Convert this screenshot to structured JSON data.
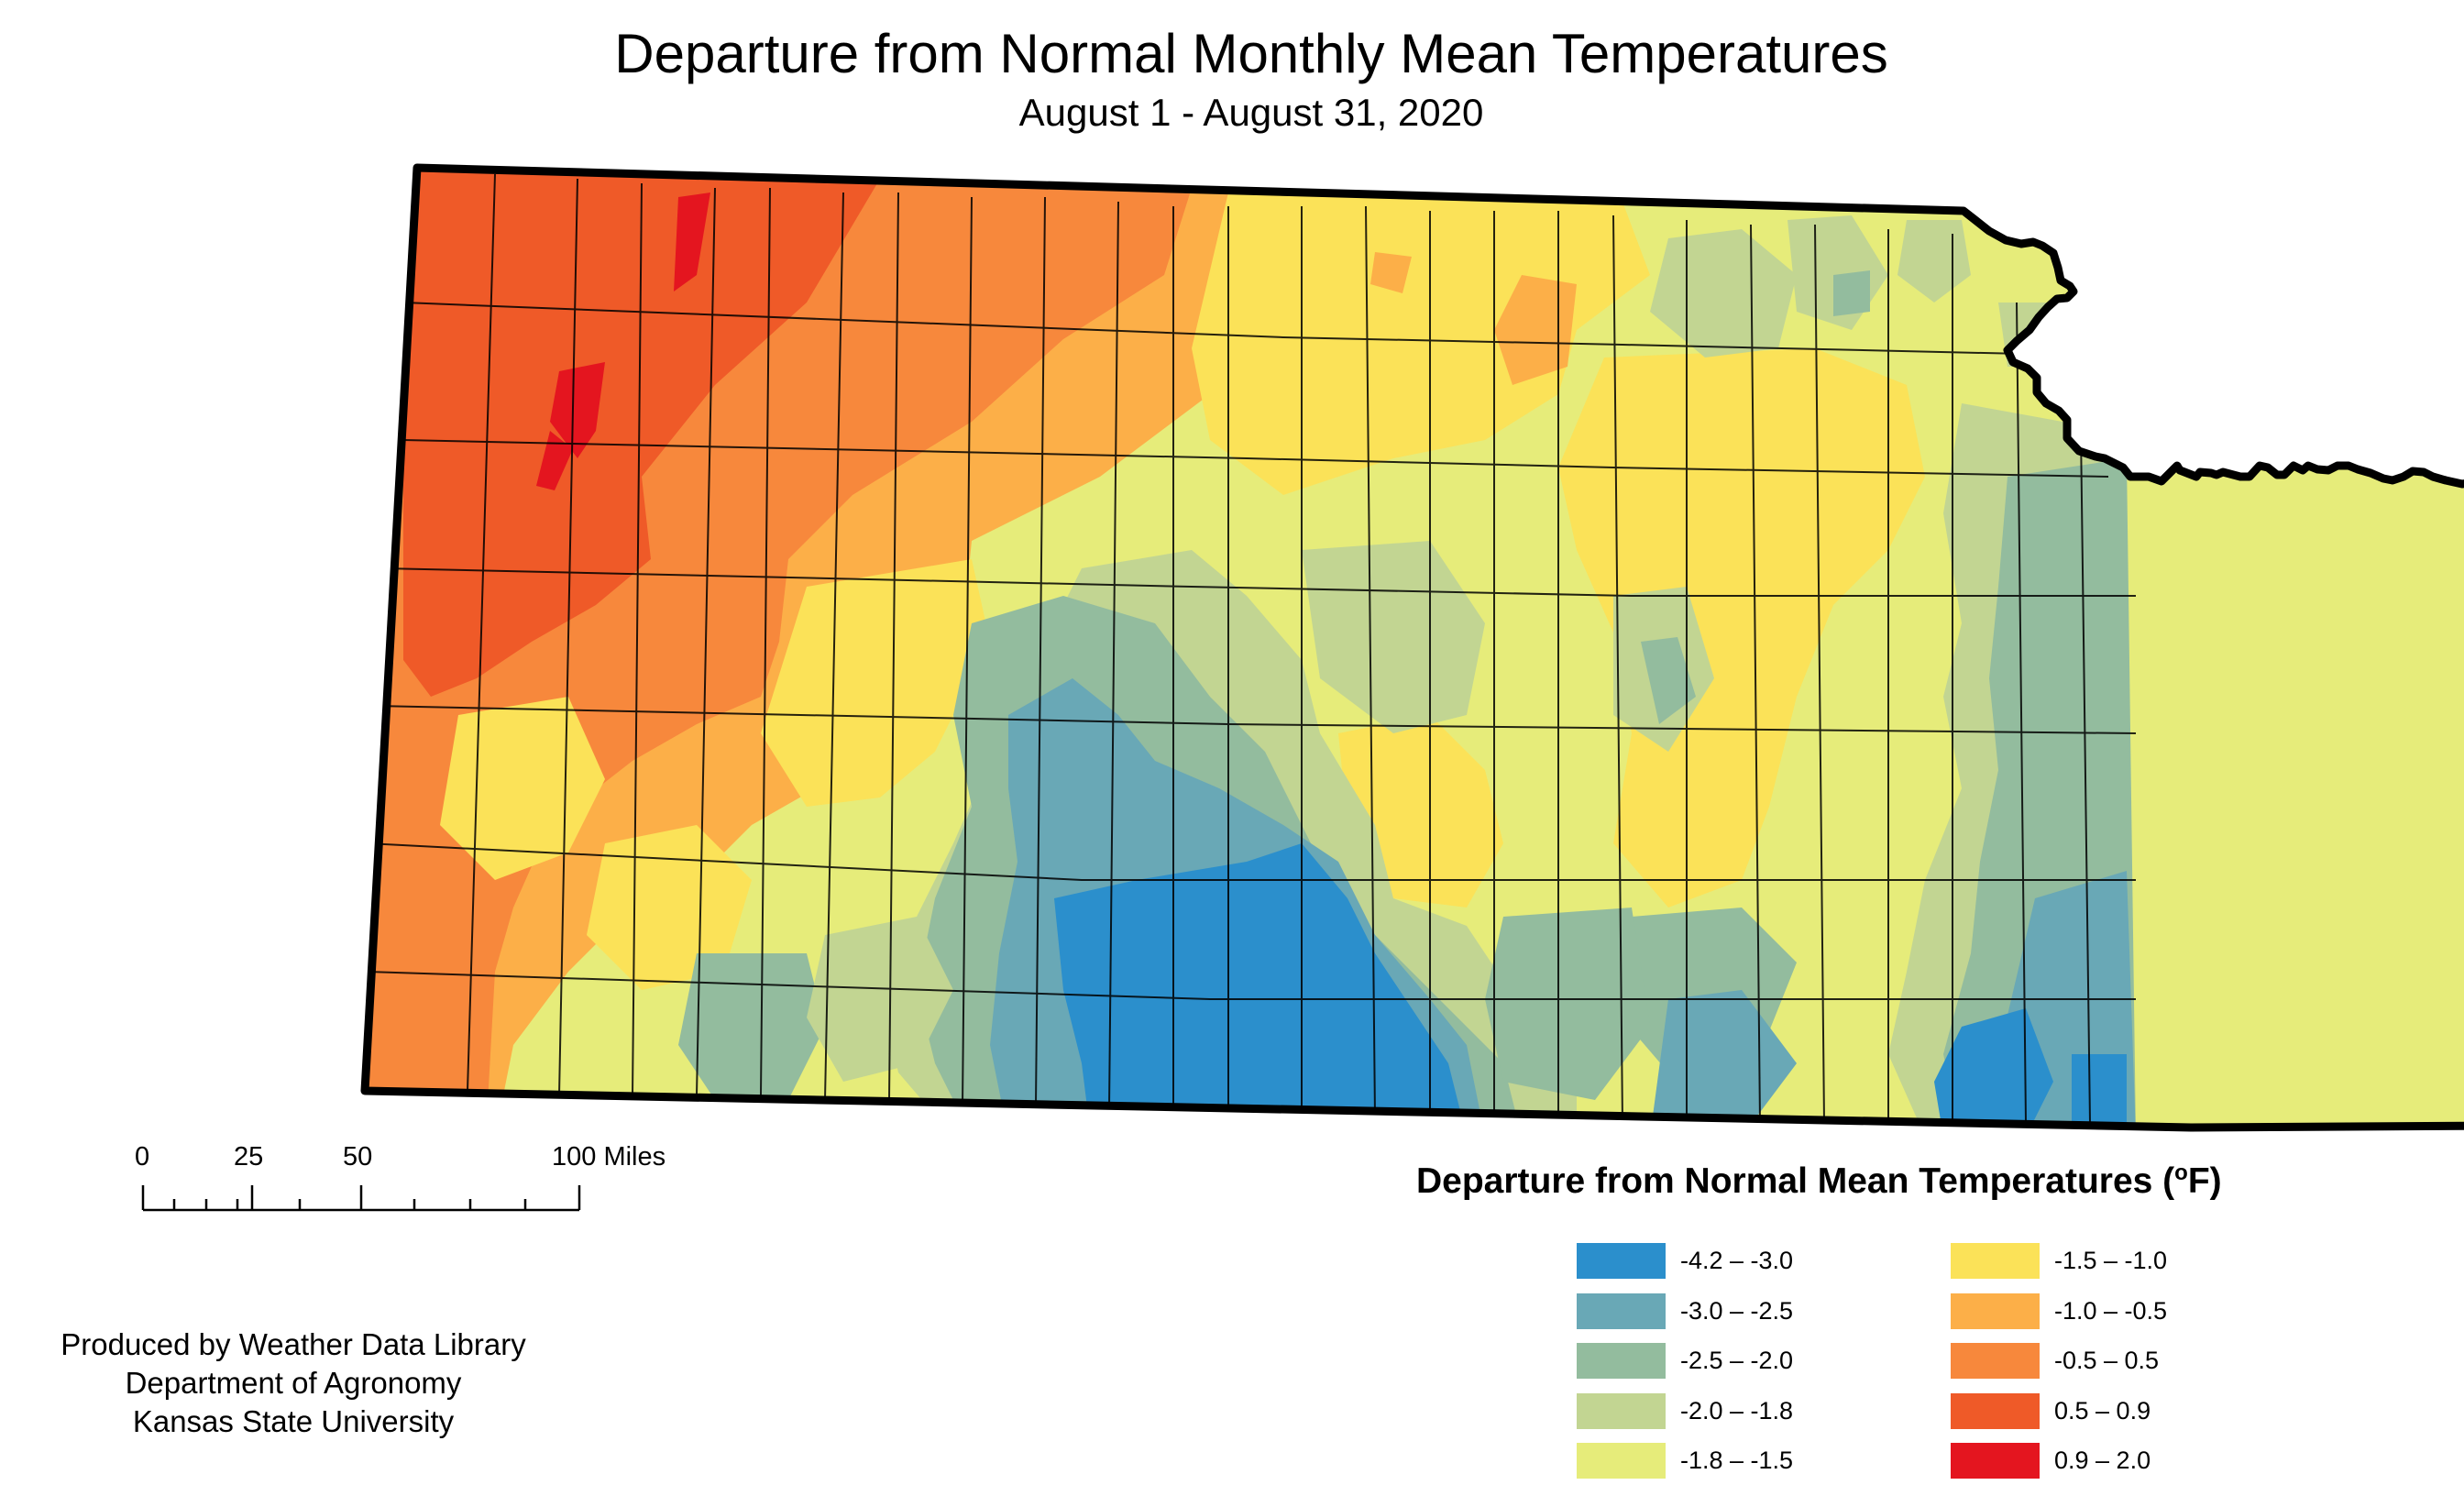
{
  "title": "Departure from Normal Monthly Mean Temperatures",
  "subtitle": "August 1 - August 31, 2020",
  "legend": {
    "title": "Departure from Normal Mean Temperatures (",
    "unit_superscript": "o",
    "unit_suffix": "F)",
    "items": [
      {
        "label": "-4.2 – -3.0",
        "color": "#2b8fcc"
      },
      {
        "label": "-3.0 – -2.5",
        "color": "#69a8b6"
      },
      {
        "label": "-2.5 – -2.0",
        "color": "#93bc9e"
      },
      {
        "label": "-2.0 – -1.8",
        "color": "#c2d592"
      },
      {
        "label": "-1.8 – -1.5",
        "color": "#e6ec7a"
      },
      {
        "label": "-1.5 – -1.0",
        "color": "#fbe258"
      },
      {
        "label": "-1.0 – -0.5",
        "color": "#fcaf48"
      },
      {
        "label": "-0.5 – 0.5",
        "color": "#f7883c"
      },
      {
        "label": "0.5 – 0.9",
        "color": "#ef5a28"
      },
      {
        "label": "0.9 – 2.0",
        "color": "#e4151f"
      }
    ]
  },
  "scale_bar": {
    "labels": [
      "0",
      "25",
      "50",
      "100 Miles"
    ]
  },
  "credits": [
    "Produced by Weather Data Library",
    "Department of Agronomy",
    "Kansas State University"
  ]
}
